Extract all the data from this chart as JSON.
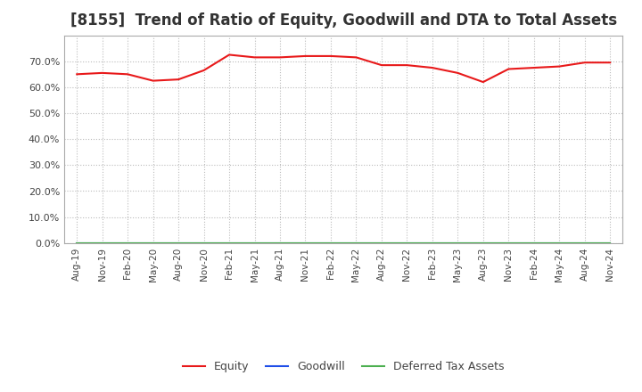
{
  "title": "[8155]  Trend of Ratio of Equity, Goodwill and DTA to Total Assets",
  "x_labels": [
    "Aug-19",
    "Nov-19",
    "Feb-20",
    "May-20",
    "Aug-20",
    "Nov-20",
    "Feb-21",
    "May-21",
    "Aug-21",
    "Nov-21",
    "Feb-22",
    "May-22",
    "Aug-22",
    "Nov-22",
    "Feb-23",
    "May-23",
    "Aug-23",
    "Nov-23",
    "Feb-24",
    "May-24",
    "Aug-24",
    "Nov-24"
  ],
  "equity": [
    65.0,
    65.5,
    65.0,
    62.5,
    63.0,
    66.5,
    72.5,
    71.5,
    71.5,
    72.0,
    72.0,
    71.5,
    68.5,
    68.5,
    67.5,
    65.5,
    62.0,
    67.0,
    67.5,
    68.0,
    69.5,
    69.5
  ],
  "goodwill": [
    0.0,
    0.0,
    0.0,
    0.0,
    0.0,
    0.0,
    0.0,
    0.0,
    0.0,
    0.0,
    0.0,
    0.0,
    0.0,
    0.0,
    0.0,
    0.0,
    0.0,
    0.0,
    0.0,
    0.0,
    0.0,
    0.0
  ],
  "dta": [
    0.0,
    0.0,
    0.0,
    0.0,
    0.0,
    0.0,
    0.0,
    0.0,
    0.0,
    0.0,
    0.0,
    0.0,
    0.0,
    0.0,
    0.0,
    0.0,
    0.0,
    0.0,
    0.0,
    0.0,
    0.0,
    0.0
  ],
  "equity_color": "#e8191a",
  "goodwill_color": "#1f4ee8",
  "dta_color": "#4caf50",
  "ylim": [
    0,
    80
  ],
  "yticks": [
    0,
    10,
    20,
    30,
    40,
    50,
    60,
    70
  ],
  "background_color": "#ffffff",
  "grid_color": "#bbbbbb",
  "title_fontsize": 12,
  "legend_labels": [
    "Equity",
    "Goodwill",
    "Deferred Tax Assets"
  ]
}
